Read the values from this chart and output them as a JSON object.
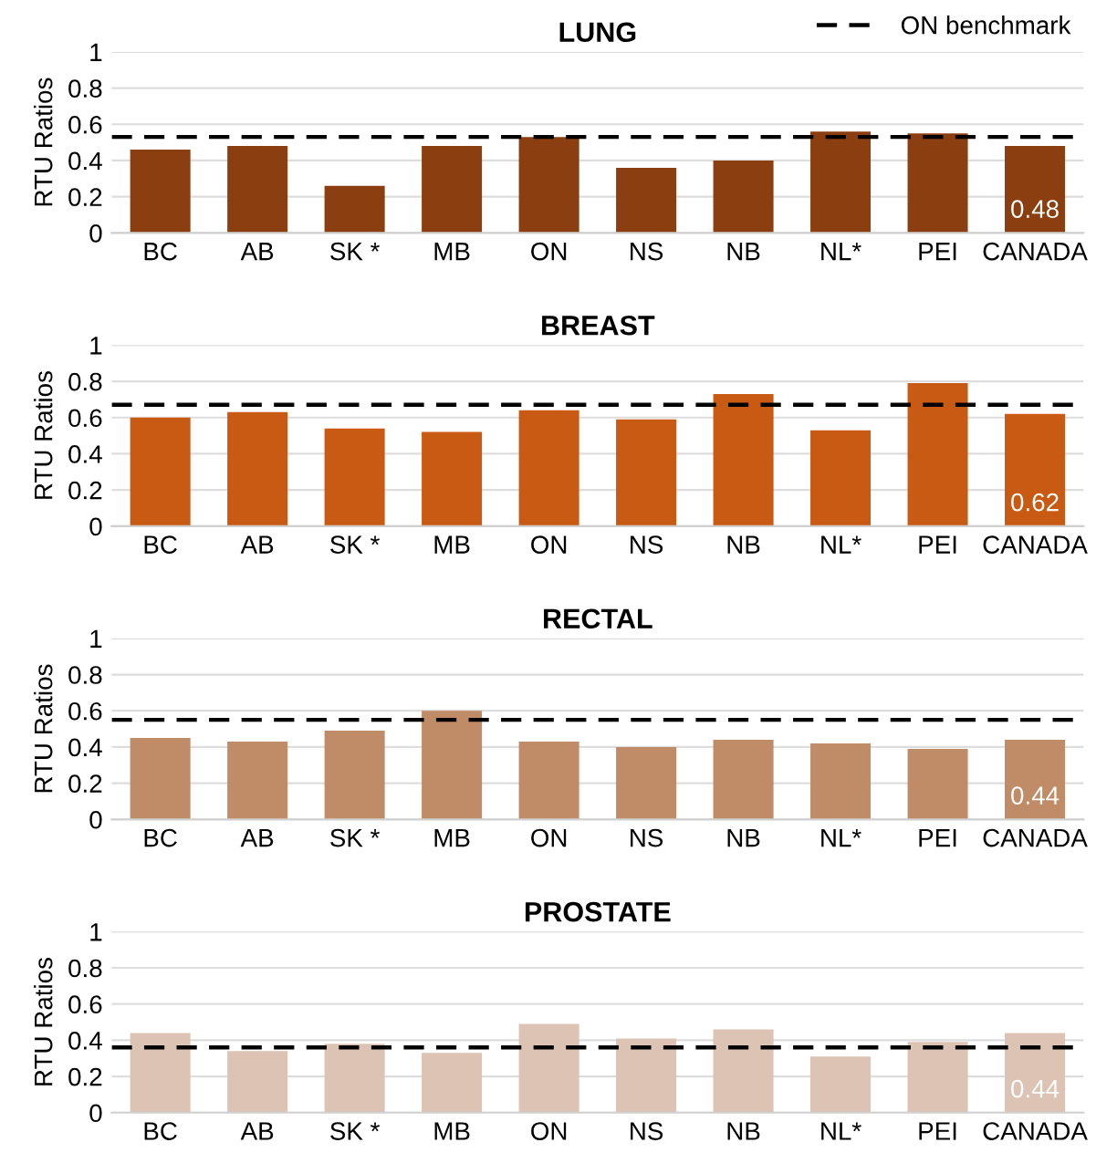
{
  "chart_data": [
    {
      "type": "bar",
      "title": "LUNG",
      "ylabel": "RTU Ratios",
      "categories": [
        "BC",
        "AB",
        "SK *",
        "MB",
        "ON",
        "NS",
        "NB",
        "NL*",
        "PEI",
        "CANADA"
      ],
      "values": [
        0.46,
        0.48,
        0.26,
        0.48,
        0.53,
        0.36,
        0.4,
        0.56,
        0.55,
        0.48
      ],
      "color": "#8b3e0f",
      "value_labels": [
        null,
        null,
        null,
        null,
        null,
        null,
        null,
        null,
        null,
        "0.48"
      ],
      "ylim": [
        0,
        1
      ],
      "yticks": [
        0,
        0.2,
        0.4,
        0.6,
        0.8,
        1
      ],
      "grid": "y",
      "legend": "top right",
      "ref_lines": [
        {
          "axis": "y",
          "value": 0.53,
          "label": "ON benchmark",
          "color": "#000000",
          "line_style": "dashed"
        }
      ]
    },
    {
      "type": "bar",
      "title": "BREAST",
      "ylabel": "RTU Ratios",
      "categories": [
        "BC",
        "AB",
        "SK *",
        "MB",
        "ON",
        "NS",
        "NB",
        "NL*",
        "PEI",
        "CANADA"
      ],
      "values": [
        0.6,
        0.63,
        0.54,
        0.52,
        0.64,
        0.59,
        0.73,
        0.53,
        0.79,
        0.62
      ],
      "color": "#c95a13",
      "value_labels": [
        null,
        null,
        null,
        null,
        null,
        null,
        null,
        null,
        null,
        "0.62"
      ],
      "ylim": [
        0,
        1
      ],
      "yticks": [
        0,
        0.2,
        0.4,
        0.6,
        0.8,
        1
      ],
      "grid": "y",
      "ref_lines": [
        {
          "axis": "y",
          "value": 0.67,
          "color": "#000000",
          "line_style": "dashed"
        }
      ]
    },
    {
      "type": "bar",
      "title": "RECTAL",
      "ylabel": "RTU Ratios",
      "categories": [
        "BC",
        "AB",
        "SK *",
        "MB",
        "ON",
        "NS",
        "NB",
        "NL*",
        "PEI",
        "CANADA"
      ],
      "values": [
        0.45,
        0.43,
        0.49,
        0.6,
        0.43,
        0.4,
        0.44,
        0.42,
        0.39,
        0.44
      ],
      "color": "#c08b67",
      "value_labels": [
        null,
        null,
        null,
        null,
        null,
        null,
        null,
        null,
        null,
        "0.44"
      ],
      "ylim": [
        0,
        1
      ],
      "yticks": [
        0,
        0.2,
        0.4,
        0.6,
        0.8,
        1
      ],
      "grid": "y",
      "ref_lines": [
        {
          "axis": "y",
          "value": 0.55,
          "color": "#000000",
          "line_style": "dashed"
        }
      ]
    },
    {
      "type": "bar",
      "title": "PROSTATE",
      "ylabel": "RTU Ratios",
      "categories": [
        "BC",
        "AB",
        "SK *",
        "MB",
        "ON",
        "NS",
        "NB",
        "NL*",
        "PEI",
        "CANADA"
      ],
      "values": [
        0.44,
        0.34,
        0.38,
        0.33,
        0.49,
        0.41,
        0.46,
        0.31,
        0.39,
        0.44
      ],
      "color": "#dcc3b3",
      "value_labels": [
        null,
        null,
        null,
        null,
        null,
        null,
        null,
        null,
        null,
        "0.44"
      ],
      "ylim": [
        0,
        1
      ],
      "yticks": [
        0,
        0.2,
        0.4,
        0.6,
        0.8,
        1
      ],
      "grid": "y",
      "ref_lines": [
        {
          "axis": "y",
          "value": 0.36,
          "color": "#000000",
          "line_style": "dashed"
        }
      ]
    }
  ]
}
